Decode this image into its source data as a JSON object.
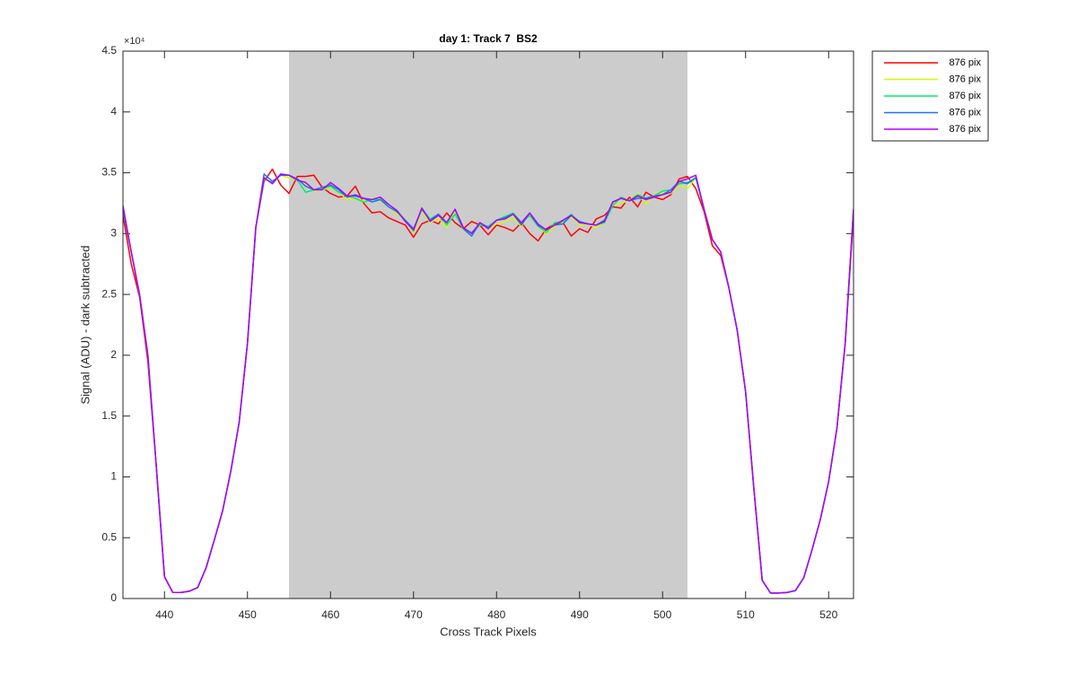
{
  "chart_data": {
    "type": "line",
    "title": "day 1: Track 7  BS2",
    "x_label": "Cross Track Pixels",
    "y_label": "Signal (ADU) - dark subtracted",
    "y_exponent": "×10⁴",
    "shaded_region": [
      455,
      503
    ],
    "shaded_color": "#cccccc",
    "xlim": [
      435,
      523
    ],
    "xticks": [
      440,
      450,
      460,
      470,
      480,
      490,
      500,
      510,
      520
    ],
    "ylim": [
      0,
      45000
    ],
    "yticks": [
      0,
      {
        "value": 5000,
        "label": "0.5"
      },
      {
        "value": 10000,
        "label": "1"
      },
      {
        "value": 15000,
        "label": "1.5"
      },
      {
        "value": 20000,
        "label": "2"
      },
      {
        "value": 25000,
        "label": "2.5"
      },
      {
        "value": 30000,
        "label": "3"
      },
      {
        "value": 35000,
        "label": "3.5"
      },
      {
        "value": 40000,
        "label": "4"
      },
      {
        "value": 45000,
        "label": "4.5"
      }
    ],
    "legend": "outside-top-right",
    "x": [
      435,
      436,
      437,
      438,
      439,
      440,
      441,
      442,
      443,
      444,
      445,
      446,
      447,
      448,
      449,
      450,
      451,
      452,
      453,
      454,
      455,
      456,
      457,
      458,
      459,
      460,
      461,
      462,
      463,
      464,
      465,
      466,
      467,
      468,
      469,
      470,
      471,
      472,
      473,
      474,
      475,
      476,
      477,
      478,
      479,
      480,
      481,
      482,
      483,
      484,
      485,
      486,
      487,
      488,
      489,
      490,
      491,
      492,
      493,
      494,
      495,
      496,
      497,
      498,
      499,
      500,
      501,
      502,
      503,
      504,
      505,
      506,
      507,
      508,
      509,
      510,
      511,
      512,
      513,
      514,
      515,
      516,
      517,
      518,
      519,
      520,
      521,
      522,
      523
    ],
    "series": [
      {
        "name": "876 pix",
        "color": "#ff0000",
        "values": [
          31500,
          27500,
          24800,
          19500,
          11000,
          1800,
          500,
          500,
          600,
          900,
          2500,
          4800,
          7200,
          10500,
          14500,
          21000,
          30500,
          34300,
          35300,
          34000,
          33300,
          34700,
          34700,
          34800,
          33800,
          33300,
          33000,
          33100,
          33900,
          32500,
          31700,
          31800,
          31300,
          31000,
          30700,
          29700,
          30800,
          31100,
          30800,
          31700,
          30900,
          30400,
          31000,
          30700,
          29900,
          30700,
          30500,
          30200,
          30900,
          30000,
          29400,
          30400,
          30800,
          30900,
          29800,
          30400,
          30100,
          31200,
          31500,
          32200,
          32100,
          33000,
          32200,
          33400,
          33000,
          32800,
          33200,
          34500,
          34700,
          33700,
          31800,
          29000,
          28200,
          25500,
          22000,
          17000,
          9000,
          1500,
          450,
          450,
          500,
          650,
          1700,
          4000,
          6500,
          9600,
          14000,
          21000,
          31500
        ]
      },
      {
        "name": "876 pix",
        "color": "#ccff00",
        "values": [
          32000,
          28500,
          25000,
          20000,
          11000,
          1800,
          500,
          500,
          600,
          900,
          2500,
          4800,
          7200,
          10500,
          14500,
          21000,
          30500,
          34500,
          34200,
          34800,
          34600,
          34400,
          34100,
          33500,
          33600,
          33800,
          33400,
          32800,
          32900,
          32700,
          32900,
          32700,
          32200,
          31600,
          31200,
          30100,
          31900,
          30900,
          31300,
          30500,
          31900,
          30300,
          29900,
          30900,
          30400,
          30800,
          31000,
          31300,
          30600,
          31700,
          30600,
          30000,
          30600,
          30900,
          31400,
          30700,
          30800,
          30500,
          30900,
          32400,
          32500,
          32700,
          33300,
          32400,
          33200,
          33400,
          33300,
          34000,
          33700,
          34600,
          32000,
          29500,
          28500,
          25500,
          22000,
          17000,
          9000,
          1500,
          450,
          450,
          500,
          650,
          1700,
          4000,
          6500,
          9600,
          14000,
          21000,
          32000
        ]
      },
      {
        "name": "876 pix",
        "color": "#00ee66",
        "values": [
          32000,
          28500,
          25000,
          20000,
          11000,
          1800,
          500,
          500,
          600,
          900,
          2500,
          4800,
          7200,
          10500,
          14500,
          21000,
          30500,
          34500,
          34200,
          34800,
          34800,
          34400,
          33400,
          33600,
          33700,
          33900,
          33400,
          33100,
          32900,
          32600,
          32800,
          32800,
          32400,
          31900,
          31100,
          30200,
          32100,
          31200,
          31600,
          30700,
          31600,
          30400,
          30100,
          30700,
          30600,
          31100,
          31400,
          31700,
          30900,
          31500,
          30600,
          30100,
          30900,
          31000,
          31600,
          30900,
          30800,
          30700,
          30900,
          32300,
          33000,
          32700,
          33200,
          32900,
          33100,
          33500,
          33600,
          34100,
          34200,
          34600,
          32000,
          29500,
          28500,
          25500,
          22000,
          17000,
          9000,
          1500,
          450,
          450,
          500,
          650,
          1700,
          4000,
          6500,
          9600,
          14000,
          21000,
          32000
        ]
      },
      {
        "name": "876 pix",
        "color": "#1f6fff",
        "values": [
          32000,
          28500,
          25000,
          20000,
          11000,
          1800,
          500,
          500,
          600,
          900,
          2500,
          4800,
          7200,
          10500,
          14500,
          21000,
          30500,
          34900,
          34300,
          34800,
          34800,
          34500,
          33900,
          33600,
          33800,
          34000,
          33600,
          33000,
          33200,
          32900,
          32600,
          32800,
          32200,
          31800,
          31100,
          30400,
          32000,
          31100,
          31600,
          30900,
          32000,
          30400,
          29800,
          30900,
          30500,
          31100,
          31300,
          31600,
          30700,
          31700,
          30800,
          30300,
          30700,
          30800,
          31500,
          31000,
          30800,
          30700,
          31100,
          32600,
          32900,
          32700,
          32900,
          32900,
          33100,
          33200,
          33600,
          34300,
          34100,
          34600,
          32000,
          29500,
          28500,
          25500,
          22000,
          17000,
          9000,
          1500,
          450,
          450,
          500,
          650,
          1700,
          4000,
          6500,
          9600,
          14000,
          21000,
          32000
        ]
      },
      {
        "name": "876 pix",
        "color": "#b000ff",
        "values": [
          32300,
          28500,
          25000,
          20000,
          11000,
          1800,
          500,
          500,
          600,
          900,
          2500,
          4800,
          7200,
          10500,
          14500,
          21000,
          30500,
          34600,
          34100,
          34900,
          34800,
          34400,
          34200,
          33600,
          33600,
          34200,
          33700,
          33100,
          33100,
          32900,
          32800,
          33000,
          32400,
          31900,
          31000,
          30300,
          32100,
          31000,
          31500,
          30900,
          32000,
          30500,
          30000,
          30900,
          30400,
          31100,
          31200,
          31600,
          30900,
          31700,
          30700,
          30300,
          30700,
          31100,
          31500,
          30900,
          30800,
          30700,
          31000,
          32600,
          32900,
          32700,
          33100,
          32800,
          33000,
          33200,
          33400,
          34300,
          34500,
          34800,
          32000,
          29500,
          28500,
          25500,
          22000,
          17000,
          9000,
          1500,
          450,
          450,
          500,
          650,
          1700,
          4000,
          6500,
          9600,
          14000,
          21000,
          32000
        ]
      }
    ]
  }
}
